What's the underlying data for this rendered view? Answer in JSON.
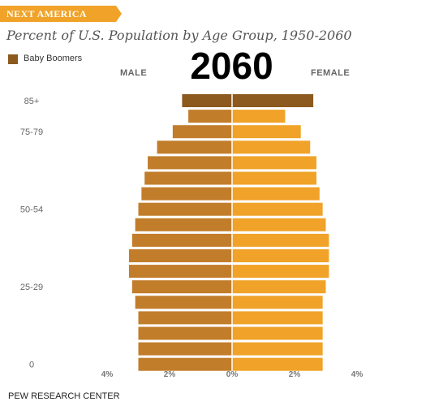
{
  "header": {
    "banner": "NEXT AMERICA",
    "title": "Percent of U.S. Population by Age Group, 1950-2060",
    "year": "2060",
    "male_label": "MALE",
    "female_label": "FEMALE",
    "source": "PEW RESEARCH CENTER"
  },
  "legend": {
    "label": "Baby Boomers",
    "color": "#8c5a1e"
  },
  "colors": {
    "banner": "#f0a328",
    "male": "#c27d2b",
    "female": "#f0a328",
    "boomer": "#8c5a1e"
  },
  "chart_data": {
    "type": "bar",
    "orientation": "horizontal-population-pyramid",
    "age_groups": [
      "0",
      "",
      "",
      "",
      "",
      "25-29",
      "",
      "",
      "",
      "",
      "50-54",
      "",
      "",
      "",
      "",
      "75-79",
      "",
      "85+"
    ],
    "tick_labels": [
      "4%",
      "2%",
      "0%",
      "2%",
      "4%"
    ],
    "xlim": [
      -4,
      4
    ],
    "series": [
      {
        "name": "MALE",
        "values": [
          3.0,
          3.0,
          3.0,
          3.0,
          3.1,
          3.2,
          3.3,
          3.3,
          3.2,
          3.1,
          3.0,
          2.9,
          2.8,
          2.7,
          2.4,
          1.9,
          1.4,
          1.6
        ]
      },
      {
        "name": "FEMALE",
        "values": [
          2.9,
          2.9,
          2.9,
          2.9,
          2.9,
          3.0,
          3.1,
          3.1,
          3.1,
          3.0,
          2.9,
          2.8,
          2.7,
          2.7,
          2.5,
          2.2,
          1.7,
          2.6
        ]
      }
    ],
    "highlight": {
      "series": "Baby Boomers",
      "age_groups": [
        "85+"
      ]
    }
  }
}
